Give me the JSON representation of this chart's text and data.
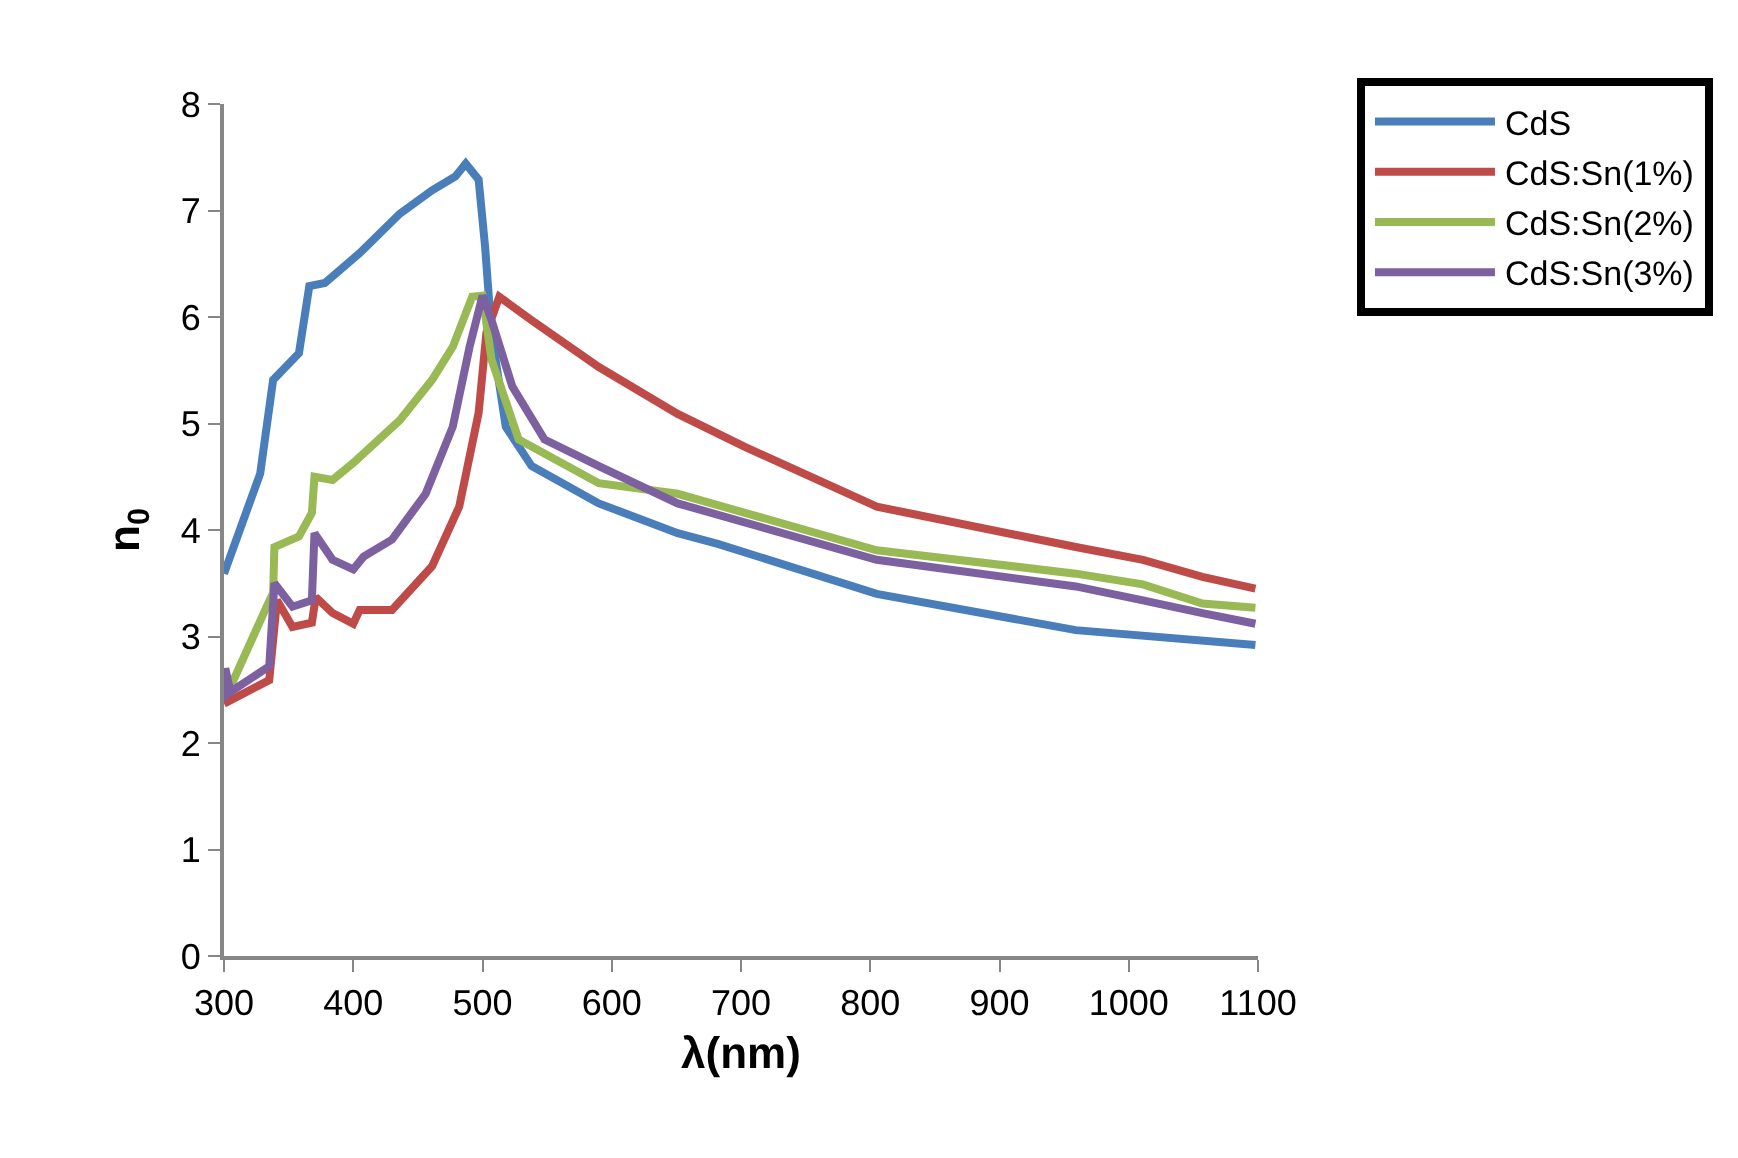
{
  "chart_data": {
    "type": "line",
    "xlabel": "λ(nm)",
    "ylabel": "n$_{0}$",
    "xlim": [
      300,
      1100
    ],
    "ylim": [
      0,
      8
    ],
    "xticks": [
      300,
      400,
      500,
      600,
      700,
      800,
      900,
      1000,
      1100
    ],
    "yticks": [
      0,
      1,
      2,
      3,
      4,
      5,
      6,
      7,
      8
    ],
    "grid": false,
    "legend": "top right",
    "marker": "none",
    "line_style": "solid",
    "series": [
      {
        "name": "CdS",
        "color": "#4a7ebb",
        "x": [
          300,
          328,
          338,
          358,
          366,
          378,
          405,
          436,
          461,
          479,
          487,
          497,
          502,
          507,
          518,
          538,
          590,
          651,
          682,
          805,
          959,
          1098
        ],
        "values": [
          3.59,
          4.53,
          5.41,
          5.66,
          6.29,
          6.32,
          6.6,
          6.97,
          7.19,
          7.32,
          7.44,
          7.29,
          6.66,
          5.85,
          4.97,
          4.6,
          4.25,
          3.97,
          3.87,
          3.4,
          3.06,
          2.92
        ]
      },
      {
        "name": "CdS:Sn(1%)",
        "color": "#be4b48",
        "x": [
          300,
          335,
          341,
          353,
          368,
          371,
          384,
          400,
          405,
          430,
          461,
          482,
          497,
          503,
          513,
          538,
          590,
          651,
          703,
          805,
          959,
          1011,
          1057,
          1098
        ],
        "values": [
          2.37,
          2.59,
          3.34,
          3.09,
          3.13,
          3.37,
          3.22,
          3.12,
          3.25,
          3.25,
          3.66,
          4.22,
          5.1,
          5.85,
          6.19,
          5.97,
          5.53,
          5.09,
          4.78,
          4.22,
          3.84,
          3.72,
          3.56,
          3.45
        ]
      },
      {
        "name": "CdS:Sn(2%)",
        "color": "#98b954",
        "x": [
          300,
          304,
          333,
          338,
          339,
          358,
          368,
          370,
          384,
          400,
          436,
          461,
          477,
          492,
          500,
          507,
          528,
          590,
          651,
          805,
          959,
          1011,
          1057,
          1098
        ],
        "values": [
          2.65,
          2.5,
          3.28,
          3.41,
          3.84,
          3.94,
          4.16,
          4.5,
          4.47,
          4.63,
          5.03,
          5.41,
          5.72,
          6.19,
          6.2,
          5.6,
          4.85,
          4.44,
          4.34,
          3.81,
          3.59,
          3.49,
          3.31,
          3.27
        ]
      },
      {
        "name": "CdS:Sn(3%)",
        "color": "#7d60a0",
        "x": [
          300,
          301,
          305,
          335,
          339,
          353,
          368,
          370,
          384,
          400,
          408,
          430,
          456,
          477,
          490,
          500,
          507,
          523,
          548,
          590,
          651,
          805,
          959,
          1011,
          1057,
          1098
        ],
        "values": [
          2.4,
          2.7,
          2.48,
          2.72,
          3.5,
          3.28,
          3.34,
          3.97,
          3.72,
          3.63,
          3.75,
          3.91,
          4.34,
          4.97,
          5.72,
          6.2,
          5.97,
          5.35,
          4.85,
          4.6,
          4.25,
          3.72,
          3.47,
          3.34,
          3.22,
          3.12
        ]
      }
    ]
  }
}
